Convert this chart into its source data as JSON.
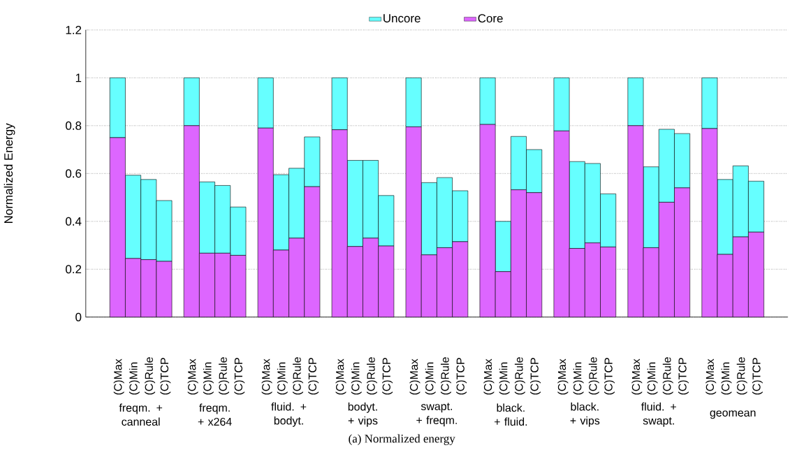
{
  "chart_data": {
    "type": "bar",
    "stacked": true,
    "ylabel": "Normalized Energy",
    "categories": [
      "(C)Max",
      "(C)Min",
      "(C)Rule",
      "(C)TCP",
      "(C)Max",
      "(C)Min",
      "(C)Rule",
      "(C)TCP",
      "(C)Max",
      "(C)Min",
      "(C)Rule",
      "(C)TCP",
      "(C)Max",
      "(C)Min",
      "(C)Rule",
      "(C)TCP",
      "(C)Max",
      "(C)Min",
      "(C)Rule",
      "(C)TCP",
      "(C)Max",
      "(C)Min",
      "(C)Rule",
      "(C)TCP",
      "(C)Max",
      "(C)Min",
      "(C)Rule",
      "(C)TCP",
      "(C)Max",
      "(C)Min",
      "(C)Rule",
      "(C)TCP",
      "(C)Max",
      "(C)Min",
      "(C)Rule",
      "(C)TCP"
    ],
    "series": [
      {
        "name": "Core",
        "color": "#dd66ff",
        "values": [
          0.75,
          0.245,
          0.24,
          0.233,
          0.8,
          0.267,
          0.267,
          0.258,
          0.79,
          0.28,
          0.33,
          0.545,
          0.783,
          0.295,
          0.33,
          0.297,
          0.795,
          0.26,
          0.29,
          0.315,
          0.805,
          0.19,
          0.532,
          0.52,
          0.778,
          0.287,
          0.31,
          0.293,
          0.8,
          0.29,
          0.48,
          0.54,
          0.788,
          0.262,
          0.335,
          0.355
        ]
      },
      {
        "name": "Uncore",
        "color": "#66ffff",
        "values": [
          0.25,
          0.348,
          0.335,
          0.254,
          0.2,
          0.298,
          0.283,
          0.202,
          0.21,
          0.315,
          0.292,
          0.208,
          0.217,
          0.36,
          0.325,
          0.211,
          0.205,
          0.302,
          0.293,
          0.213,
          0.195,
          0.21,
          0.223,
          0.18,
          0.222,
          0.363,
          0.332,
          0.222,
          0.2,
          0.338,
          0.305,
          0.227,
          0.212,
          0.313,
          0.297,
          0.213
        ]
      }
    ],
    "ylim": [
      0,
      1.2
    ],
    "yticks": [
      0,
      0.2,
      0.4,
      0.6,
      0.8,
      1,
      1.2
    ],
    "grid": "y",
    "legend": "top",
    "annotations": [
      "freqm. + canneal",
      "freqm. + x264",
      "fluid. + bodyt.",
      "bodyt. + vips",
      "swapt. + freqm.",
      "black. + fluid.",
      "black. + vips",
      "fluid. + swapt.",
      "geomean",
      "(a) Normalized energy"
    ]
  }
}
